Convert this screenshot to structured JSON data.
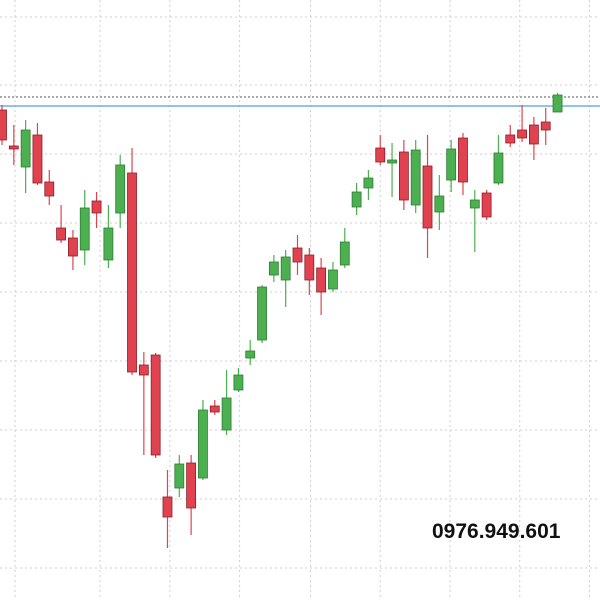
{
  "chart_data": {
    "type": "candlestick",
    "watermark": "0976.949.601",
    "ylim": [
      0,
      600
    ],
    "ygrid": [
      583,
      515,
      446,
      377,
      308,
      239,
      170,
      101,
      32
    ],
    "xgrid": [
      1.1,
      8.3,
      14.2,
      20.1,
      26.1,
      32,
      37.9,
      43.8,
      49.7
    ],
    "grid": true,
    "up_color": "#4caf50",
    "down_color": "#e0434f",
    "hlines": [
      {
        "value": 494,
        "color": "#4aa3df",
        "style": "solid"
      },
      {
        "value": 503,
        "color": "#555555",
        "style": "dotted"
      }
    ],
    "open": [
      490,
      454,
      433,
      465,
      418,
      372,
      362,
      350,
      399,
      340,
      387,
      427,
      235,
      245,
      103,
      112,
      137,
      122,
      194,
      170,
      210,
      242,
      260,
      325,
      320,
      352,
      345,
      332,
      311,
      335,
      393,
      412,
      452,
      437,
      448,
      395,
      434,
      388,
      420,
      462,
      392,
      407,
      417,
      465,
      470,
      475,
      478,
      488
    ],
    "high": [
      495,
      475,
      480,
      477,
      430,
      395,
      370,
      410,
      408,
      395,
      445,
      452,
      248,
      247,
      130,
      145,
      145,
      200,
      200,
      230,
      232,
      260,
      315,
      345,
      350,
      365,
      352,
      342,
      338,
      372,
      417,
      430,
      465,
      457,
      460,
      460,
      465,
      425,
      460,
      467,
      410,
      410,
      465,
      475,
      495,
      483,
      492,
      507
    ],
    "low": [
      455,
      435,
      407,
      415,
      395,
      357,
      330,
      335,
      372,
      332,
      372,
      225,
      145,
      142,
      52,
      103,
      65,
      120,
      185,
      165,
      208,
      235,
      257,
      318,
      293,
      325,
      305,
      285,
      308,
      332,
      385,
      400,
      435,
      403,
      390,
      387,
      342,
      370,
      408,
      405,
      348,
      380,
      415,
      453,
      458,
      440,
      455,
      488
    ],
    "close": [
      460,
      451,
      470,
      417,
      404,
      360,
      344,
      392,
      387,
      372,
      435,
      228,
      225,
      145,
      83,
      136,
      92,
      190,
      188,
      202,
      225,
      249,
      313,
      338,
      343,
      338,
      320,
      308,
      330,
      358,
      408,
      422,
      438,
      440,
      400,
      450,
      372,
      404,
      451,
      418,
      400,
      383,
      447,
      457,
      462,
      456,
      470,
      505
    ]
  }
}
